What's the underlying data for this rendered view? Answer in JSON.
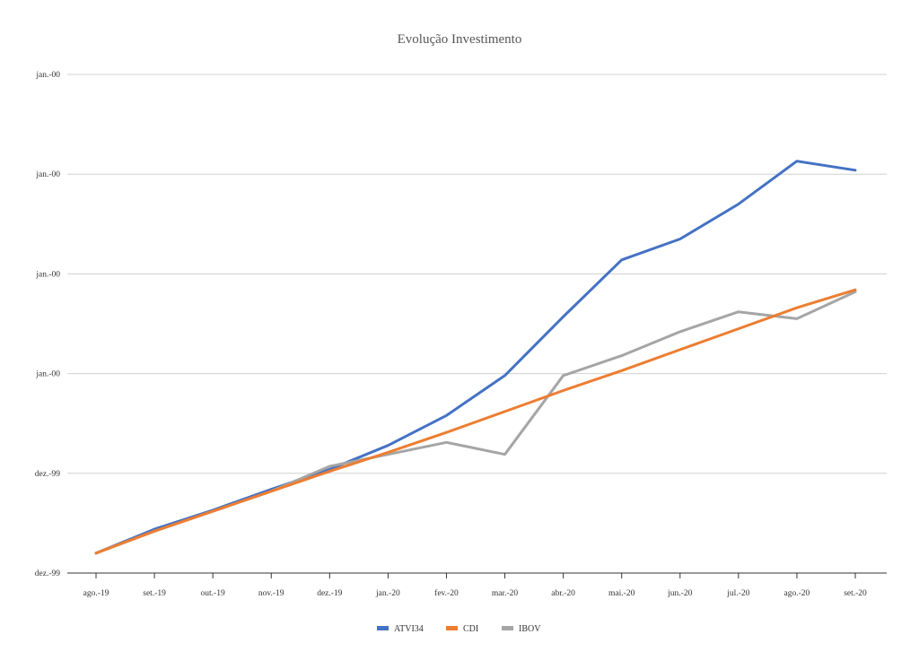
{
  "chart_data": {
    "type": "line",
    "title": "Evolução Investimento",
    "xlabel": "",
    "ylabel": "",
    "categories": [
      "ago.-19",
      "set.-19",
      "out.-19",
      "nov.-19",
      "dez.-19",
      "jan.-20",
      "fev.-20",
      "mar.-20",
      "abr.-20",
      "mai.-20",
      "jun.-20",
      "jul.-20",
      "ago.-20",
      "set.-20"
    ],
    "y_tick_labels": [
      "dez.-99",
      "dez.-99",
      "jan.-00",
      "jan.-00",
      "jan.-00",
      "jan.-00"
    ],
    "ylim": [
      0,
      5
    ],
    "grid": true,
    "legend_position": "bottom",
    "series": [
      {
        "name": "ATVI34",
        "color": "#4472c4",
        "values": [
          0.2,
          0.44,
          0.63,
          0.84,
          1.04,
          1.28,
          1.58,
          1.98,
          2.57,
          3.14,
          3.35,
          3.7,
          4.13,
          4.04
        ]
      },
      {
        "name": "CDI",
        "color": "#ed7d31",
        "values": [
          0.2,
          0.42,
          0.62,
          0.82,
          1.02,
          1.21,
          1.41,
          1.62,
          1.83,
          2.03,
          2.24,
          2.45,
          2.66,
          2.84
        ]
      },
      {
        "name": "IBOV",
        "color": "#a5a5a5",
        "values": [
          0.2,
          0.42,
          0.62,
          0.82,
          1.07,
          1.19,
          1.31,
          1.19,
          1.98,
          2.18,
          2.42,
          2.62,
          2.55,
          2.82
        ]
      }
    ]
  }
}
